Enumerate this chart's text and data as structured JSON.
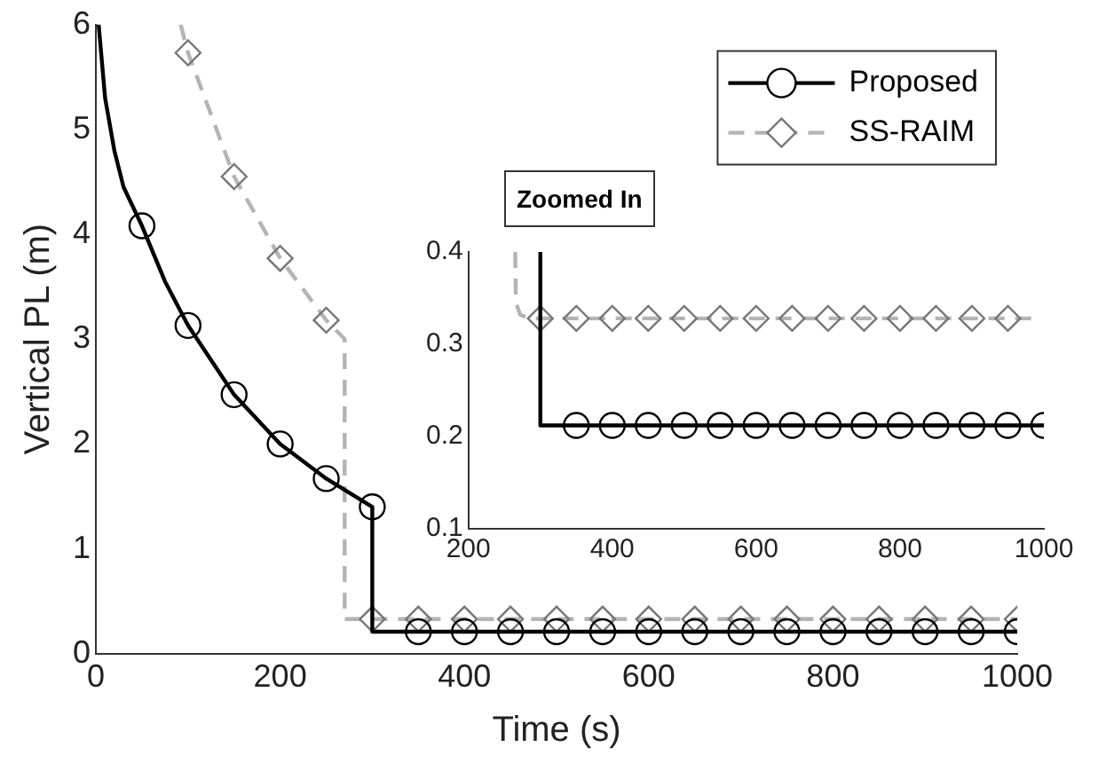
{
  "chart_data": [
    {
      "type": "line",
      "xlabel": "Time (s)",
      "ylabel": "Vertical PL (m)",
      "xlim": [
        0,
        1000
      ],
      "ylim": [
        0,
        6
      ],
      "xticks": [
        0,
        200,
        400,
        600,
        800,
        1000
      ],
      "yticks": [
        0,
        1,
        2,
        3,
        4,
        5,
        6
      ],
      "grid": false,
      "legend": "top right",
      "series": [
        {
          "name": "Proposed",
          "color": "#000000",
          "marker": "circle",
          "line_style": "solid",
          "x": [
            3,
            10,
            20,
            30,
            50,
            75,
            100,
            150,
            200,
            250,
            300,
            300,
            350,
            400,
            450,
            500,
            550,
            600,
            650,
            700,
            750,
            800,
            850,
            900,
            950,
            1000
          ],
          "values": [
            6,
            5.3,
            4.8,
            4.45,
            4.08,
            3.55,
            3.13,
            2.47,
            2.0,
            1.67,
            1.4,
            0.21,
            0.21,
            0.21,
            0.21,
            0.21,
            0.21,
            0.21,
            0.21,
            0.21,
            0.21,
            0.21,
            0.21,
            0.21,
            0.21,
            0.21
          ]
        },
        {
          "name": "SS-RAIM",
          "color": "#b4b4b4",
          "marker": "diamond",
          "line_style": "dashed",
          "x": [
            92,
            100,
            150,
            200,
            250,
            270,
            270,
            300,
            350,
            400,
            450,
            500,
            550,
            600,
            650,
            700,
            750,
            800,
            850,
            900,
            950,
            1000
          ],
          "values": [
            6,
            5.73,
            4.55,
            3.77,
            3.18,
            3.0,
            0.33,
            0.33,
            0.33,
            0.33,
            0.33,
            0.33,
            0.33,
            0.33,
            0.33,
            0.33,
            0.33,
            0.33,
            0.33,
            0.33,
            0.33,
            0.33
          ]
        }
      ]
    },
    {
      "type": "line",
      "title": "Zoomed In",
      "xlim": [
        200,
        1000
      ],
      "ylim": [
        0.1,
        0.4
      ],
      "xticks": [
        200,
        400,
        600,
        800,
        1000
      ],
      "yticks": [
        0.1,
        0.2,
        0.3,
        0.4
      ],
      "grid": false,
      "legend": false,
      "series": [
        {
          "color": "#000000",
          "marker": "circle",
          "line_style": "solid",
          "x": [
            300,
            300,
            350,
            400,
            450,
            500,
            550,
            600,
            650,
            700,
            750,
            800,
            850,
            900,
            950,
            1000
          ],
          "values": [
            0.4,
            0.212,
            0.212,
            0.212,
            0.212,
            0.212,
            0.212,
            0.212,
            0.212,
            0.212,
            0.212,
            0.212,
            0.212,
            0.212,
            0.212,
            0.212
          ]
        },
        {
          "color": "#b4b4b4",
          "marker": "diamond",
          "line_style": "dashed",
          "x": [
            265,
            266,
            272,
            285,
            300,
            350,
            400,
            450,
            500,
            550,
            600,
            650,
            700,
            750,
            800,
            850,
            900,
            950,
            990
          ],
          "values": [
            0.4,
            0.345,
            0.332,
            0.328,
            0.328,
            0.328,
            0.328,
            0.328,
            0.328,
            0.328,
            0.328,
            0.328,
            0.328,
            0.328,
            0.328,
            0.328,
            0.328,
            0.328,
            0.328
          ]
        }
      ]
    }
  ]
}
